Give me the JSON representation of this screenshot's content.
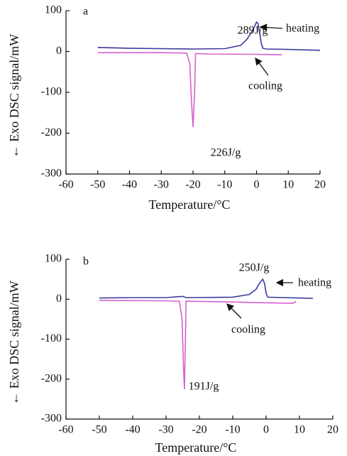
{
  "chart_data": [
    {
      "type": "line",
      "annotations": [
        "a",
        "289J/g",
        "heating",
        "cooling",
        "226J/g"
      ],
      "x_label": "Temperature/°C",
      "y_label": "← Exo   DSC signal/mW",
      "xlim": [
        -60,
        20
      ],
      "xticks": [
        -60,
        -50,
        -40,
        -30,
        -20,
        -10,
        0,
        10,
        20
      ],
      "ylim": [
        -300,
        100
      ],
      "yticks": [
        -300,
        -200,
        -100,
        0,
        100
      ],
      "series": [
        {
          "name": "heating",
          "color": "#3a3a9c",
          "x": [
            -50,
            -40,
            -30,
            -20,
            -10,
            -5,
            -3,
            -1,
            0,
            0.5,
            1,
            1.5,
            2,
            3,
            10,
            20
          ],
          "values": [
            10,
            8,
            7,
            6,
            7,
            15,
            30,
            55,
            72,
            68,
            45,
            20,
            8,
            6,
            5,
            3
          ]
        },
        {
          "name": "cooling",
          "color": "#d660cf",
          "x": [
            -50,
            -30,
            -22,
            -21,
            -20.5,
            -20,
            -19.5,
            -19.2,
            -15,
            0,
            8
          ],
          "values": [
            -3,
            -3,
            -4,
            -30,
            -120,
            -185,
            -100,
            -5,
            -6,
            -7,
            -8
          ]
        }
      ]
    },
    {
      "type": "line",
      "annotations": [
        "b",
        "250J/g",
        "heating",
        "cooling",
        "191J/g"
      ],
      "x_label": "Temperature/°C",
      "y_label": "← Exo   DSC signal/mW",
      "xlim": [
        -60,
        20
      ],
      "xticks": [
        -60,
        -50,
        -40,
        -30,
        -20,
        -10,
        0,
        10,
        20
      ],
      "ylim": [
        -300,
        100
      ],
      "yticks": [
        -300,
        -200,
        -100,
        0,
        100
      ],
      "series": [
        {
          "name": "heating",
          "color": "#3a3a9c",
          "x": [
            -50,
            -40,
            -30,
            -25,
            -24,
            -10,
            -5,
            -3,
            -2,
            -1,
            -0.5,
            0,
            0.5,
            14
          ],
          "values": [
            3,
            4,
            4,
            7,
            4,
            5,
            12,
            25,
            40,
            50,
            40,
            15,
            5,
            2
          ]
        },
        {
          "name": "cooling",
          "color": "#d660cf",
          "x": [
            -50,
            -30,
            -26,
            -25.2,
            -24.8,
            -24.5,
            -24.2,
            -24,
            -10,
            0,
            8,
            9
          ],
          "values": [
            -3,
            -4,
            -5,
            -50,
            -160,
            -225,
            -100,
            -5,
            -7,
            -9,
            -10,
            -6
          ]
        }
      ]
    }
  ]
}
